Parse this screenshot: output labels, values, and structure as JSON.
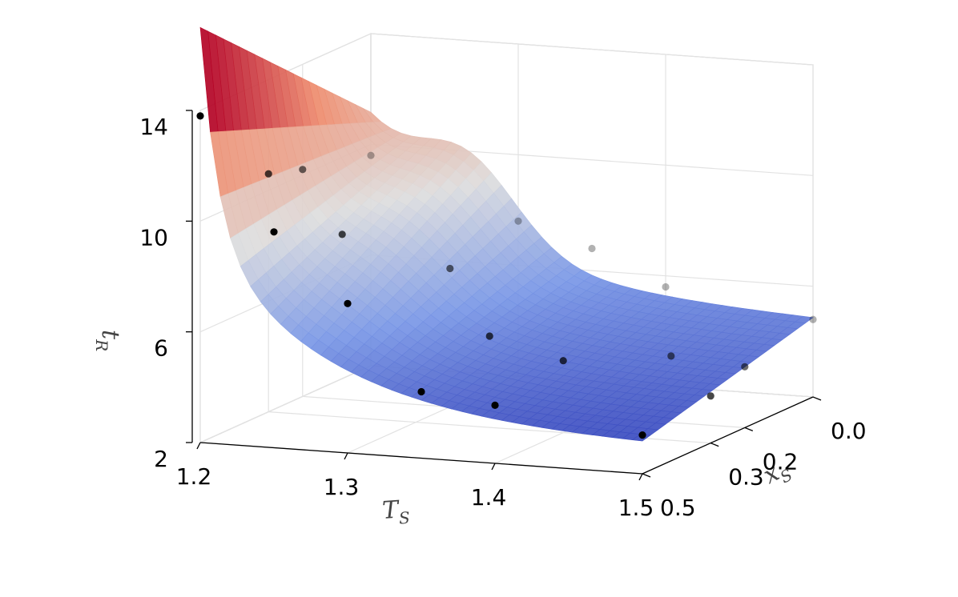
{
  "chart_data": {
    "type": "surface3d",
    "title": "",
    "axes": {
      "x": {
        "name": "T",
        "sub": "S",
        "ticks": [
          "1.2",
          "1.3",
          "1.4",
          "1.5"
        ],
        "tick_values": [
          1.2,
          1.3,
          1.4,
          1.5
        ],
        "range": [
          1.2,
          1.5
        ]
      },
      "y": {
        "name": "x",
        "sub": "S",
        "ticks": [
          "0.0",
          "0.2",
          "0.3",
          "0.5"
        ],
        "tick_values": [
          0.0,
          0.2,
          0.3,
          0.5
        ],
        "range": [
          0.0,
          0.5
        ]
      },
      "z": {
        "name": "t",
        "sub": "R",
        "ticks": [
          "14",
          "10",
          "6",
          "2"
        ],
        "tick_values": [
          14,
          10,
          6,
          2
        ],
        "range": [
          2,
          14
        ]
      }
    },
    "colormap": {
      "low": "#3b4cc0",
      "mid": "#dddddd",
      "high": "#b40426"
    },
    "scatter_points": [
      {
        "T": 1.2,
        "x": 0.5,
        "t": 13.8
      },
      {
        "T": 1.2,
        "x": 0.3,
        "t": 10.6
      },
      {
        "T": 1.2,
        "x": 0.2,
        "t": 10.2
      },
      {
        "T": 1.2,
        "x": 0.0,
        "t": 9.6
      },
      {
        "T": 1.25,
        "x": 0.5,
        "t": 9.8
      },
      {
        "T": 1.25,
        "x": 0.3,
        "t": 8.6
      },
      {
        "T": 1.3,
        "x": 0.5,
        "t": 7.4
      },
      {
        "T": 1.3,
        "x": 0.2,
        "t": 7.0
      },
      {
        "T": 1.3,
        "x": 0.0,
        "t": 7.6
      },
      {
        "T": 1.35,
        "x": 0.5,
        "t": 4.4
      },
      {
        "T": 1.35,
        "x": 0.3,
        "t": 5.3
      },
      {
        "T": 1.35,
        "x": 0.0,
        "t": 6.8
      },
      {
        "T": 1.4,
        "x": 0.5,
        "t": 4.1
      },
      {
        "T": 1.4,
        "x": 0.3,
        "t": 4.6
      },
      {
        "T": 1.4,
        "x": 0.0,
        "t": 5.6
      },
      {
        "T": 1.45,
        "x": 0.2,
        "t": 4.4
      },
      {
        "T": 1.5,
        "x": 0.5,
        "t": 3.4
      },
      {
        "T": 1.5,
        "x": 0.3,
        "t": 3.7
      },
      {
        "T": 1.5,
        "x": 0.2,
        "t": 4.2
      },
      {
        "T": 1.5,
        "x": 0.0,
        "t": 4.8
      }
    ]
  }
}
